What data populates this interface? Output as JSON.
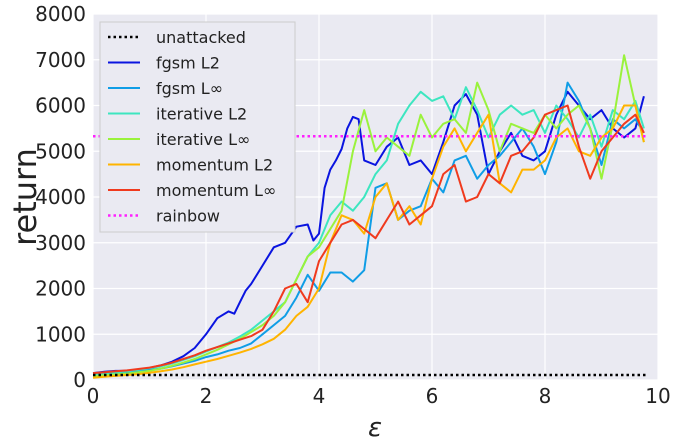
{
  "chart_data": {
    "type": "line",
    "xlabel": "ε",
    "ylabel": "return",
    "xlim": [
      0,
      10
    ],
    "ylim": [
      0,
      8000
    ],
    "xticks": [
      "0",
      "2",
      "4",
      "6",
      "8",
      "10"
    ],
    "yticks": [
      "0",
      "1000",
      "2000",
      "3000",
      "4000",
      "5000",
      "6000",
      "7000",
      "8000"
    ],
    "grid": true,
    "legend_position": "top-left",
    "series": [
      {
        "name": "unattacked",
        "color": "#000000",
        "style": "dotted",
        "x": [
          0,
          9.8
        ],
        "y": [
          110,
          110
        ]
      },
      {
        "name": "fgsm L2",
        "color": "#0a14e0",
        "style": "solid",
        "x": [
          0,
          0.2,
          0.4,
          0.6,
          0.8,
          1.0,
          1.2,
          1.4,
          1.6,
          1.8,
          2.0,
          2.2,
          2.4,
          2.5,
          2.6,
          2.7,
          2.8,
          3.0,
          3.2,
          3.4,
          3.6,
          3.8,
          3.9,
          4.0,
          4.1,
          4.2,
          4.3,
          4.4,
          4.5,
          4.6,
          4.7,
          4.8,
          5.0,
          5.2,
          5.4,
          5.6,
          5.8,
          6.0,
          6.2,
          6.4,
          6.6,
          6.8,
          7.0,
          7.2,
          7.4,
          7.6,
          7.8,
          8.0,
          8.2,
          8.4,
          8.6,
          8.8,
          9.0,
          9.2,
          9.4,
          9.6,
          9.75
        ],
        "y": [
          150,
          180,
          200,
          200,
          230,
          260,
          320,
          400,
          520,
          700,
          1000,
          1350,
          1500,
          1450,
          1700,
          1950,
          2100,
          2500,
          2900,
          3000,
          3350,
          3400,
          3050,
          3200,
          4200,
          4600,
          4800,
          5050,
          5500,
          5750,
          5700,
          4800,
          4700,
          5100,
          5300,
          4700,
          4800,
          4500,
          5200,
          6000,
          6250,
          5800,
          4500,
          5000,
          5400,
          4900,
          4800,
          5000,
          5800,
          6300,
          6000,
          5700,
          5900,
          5500,
          5300,
          5500,
          6200
        ]
      },
      {
        "name": "fgsm L∞",
        "color": "#0f9de6",
        "style": "solid",
        "x": [
          0,
          0.2,
          0.4,
          0.6,
          0.8,
          1.0,
          1.2,
          1.4,
          1.6,
          1.8,
          2.0,
          2.2,
          2.4,
          2.6,
          2.8,
          3.0,
          3.2,
          3.4,
          3.6,
          3.8,
          4.0,
          4.2,
          4.4,
          4.6,
          4.8,
          5.0,
          5.2,
          5.4,
          5.6,
          5.8,
          6.0,
          6.2,
          6.4,
          6.6,
          6.8,
          7.0,
          7.2,
          7.4,
          7.6,
          7.8,
          8.0,
          8.2,
          8.4,
          8.6,
          8.8,
          9.0,
          9.2,
          9.4,
          9.6,
          9.75
        ],
        "y": [
          100,
          120,
          150,
          170,
          200,
          220,
          250,
          300,
          360,
          420,
          500,
          560,
          640,
          700,
          800,
          1000,
          1200,
          1400,
          1800,
          2300,
          1950,
          2350,
          2350,
          2150,
          2400,
          4200,
          4300,
          3500,
          3700,
          3800,
          4400,
          4100,
          4800,
          4900,
          4400,
          4700,
          4900,
          5200,
          5500,
          5100,
          4500,
          5200,
          6500,
          6100,
          5500,
          4700,
          5700,
          5500,
          5700,
          5400
        ]
      },
      {
        "name": "iterative L2",
        "color": "#3de6c0",
        "style": "solid",
        "x": [
          0,
          0.2,
          0.4,
          0.6,
          0.8,
          1.0,
          1.2,
          1.4,
          1.6,
          1.8,
          2.0,
          2.2,
          2.4,
          2.6,
          2.8,
          3.0,
          3.2,
          3.4,
          3.6,
          3.8,
          4.0,
          4.2,
          4.4,
          4.6,
          4.8,
          5.0,
          5.2,
          5.4,
          5.6,
          5.8,
          6.0,
          6.2,
          6.4,
          6.6,
          6.8,
          7.0,
          7.2,
          7.4,
          7.6,
          7.8,
          8.0,
          8.2,
          8.4,
          8.6,
          8.8,
          9.0,
          9.2,
          9.4,
          9.6,
          9.75
        ],
        "y": [
          120,
          140,
          160,
          190,
          220,
          260,
          300,
          360,
          440,
          520,
          620,
          720,
          820,
          950,
          1100,
          1300,
          1500,
          1700,
          2200,
          2700,
          3000,
          3600,
          3900,
          3700,
          4000,
          4500,
          4800,
          5600,
          6000,
          6300,
          6100,
          6200,
          5700,
          6400,
          5900,
          5300,
          5800,
          6000,
          5800,
          5900,
          5400,
          6000,
          5700,
          5300,
          5800,
          5100,
          5900,
          5700,
          6100,
          5500
        ]
      },
      {
        "name": "iterative L∞",
        "color": "#9af23c",
        "style": "solid",
        "x": [
          0,
          0.2,
          0.4,
          0.6,
          0.8,
          1.0,
          1.2,
          1.4,
          1.6,
          1.8,
          2.0,
          2.2,
          2.4,
          2.6,
          2.8,
          3.0,
          3.2,
          3.4,
          3.6,
          3.8,
          4.0,
          4.2,
          4.4,
          4.6,
          4.8,
          5.0,
          5.2,
          5.4,
          5.6,
          5.8,
          6.0,
          6.2,
          6.4,
          6.6,
          6.8,
          7.0,
          7.2,
          7.4,
          7.6,
          7.8,
          8.0,
          8.2,
          8.4,
          8.6,
          8.8,
          9.0,
          9.2,
          9.4,
          9.6,
          9.75
        ],
        "y": [
          80,
          100,
          120,
          140,
          170,
          200,
          250,
          310,
          380,
          460,
          560,
          660,
          780,
          900,
          1050,
          1200,
          1400,
          1700,
          2200,
          2700,
          2900,
          3300,
          3700,
          5000,
          5900,
          5000,
          5300,
          5100,
          4900,
          5800,
          5300,
          5600,
          5700,
          5400,
          6500,
          5900,
          5000,
          5600,
          5500,
          5400,
          5800,
          5500,
          5800,
          6000,
          5500,
          4400,
          5600,
          7100,
          6000,
          5200
        ]
      },
      {
        "name": "momentum L2",
        "color": "#ffb400",
        "style": "solid",
        "x": [
          0,
          0.2,
          0.4,
          0.6,
          0.8,
          1.0,
          1.2,
          1.4,
          1.6,
          1.8,
          2.0,
          2.2,
          2.4,
          2.6,
          2.8,
          3.0,
          3.2,
          3.4,
          3.6,
          3.8,
          4.0,
          4.2,
          4.4,
          4.6,
          4.8,
          5.0,
          5.2,
          5.4,
          5.6,
          5.8,
          6.0,
          6.2,
          6.4,
          6.6,
          6.8,
          7.0,
          7.2,
          7.4,
          7.6,
          7.8,
          8.0,
          8.2,
          8.4,
          8.6,
          8.8,
          9.0,
          9.2,
          9.4,
          9.6,
          9.75
        ],
        "y": [
          50,
          70,
          90,
          110,
          130,
          160,
          190,
          230,
          280,
          340,
          400,
          460,
          530,
          600,
          680,
          780,
          900,
          1100,
          1400,
          1600,
          2000,
          3000,
          3600,
          3500,
          3200,
          4000,
          4300,
          3500,
          3800,
          3400,
          4400,
          5100,
          5500,
          5000,
          5400,
          5800,
          4300,
          4100,
          4600,
          4600,
          4800,
          5300,
          5500,
          5000,
          4900,
          5300,
          5500,
          6000,
          6000,
          5200
        ]
      },
      {
        "name": "momentum L∞",
        "color": "#f03a1e",
        "style": "solid",
        "x": [
          0,
          0.2,
          0.4,
          0.6,
          0.8,
          1.0,
          1.2,
          1.4,
          1.6,
          1.8,
          2.0,
          2.2,
          2.4,
          2.6,
          2.8,
          3.0,
          3.2,
          3.4,
          3.6,
          3.8,
          4.0,
          4.2,
          4.4,
          4.6,
          4.8,
          5.0,
          5.2,
          5.4,
          5.6,
          5.8,
          6.0,
          6.2,
          6.4,
          6.6,
          6.8,
          7.0,
          7.2,
          7.4,
          7.6,
          7.8,
          8.0,
          8.2,
          8.4,
          8.6,
          8.8,
          9.0,
          9.2,
          9.4,
          9.6,
          9.75
        ],
        "y": [
          150,
          170,
          190,
          210,
          240,
          270,
          320,
          380,
          460,
          540,
          640,
          720,
          800,
          880,
          960,
          1100,
          1500,
          2000,
          2100,
          1700,
          2600,
          3000,
          3400,
          3500,
          3300,
          3100,
          3500,
          3900,
          3400,
          3600,
          3800,
          4500,
          4700,
          3900,
          4000,
          4500,
          4300,
          4900,
          5000,
          5300,
          5800,
          5900,
          6000,
          5100,
          4400,
          5000,
          5300,
          5600,
          5800,
          5400
        ]
      },
      {
        "name": "rainbow",
        "color": "#ff20ff",
        "style": "dotted",
        "x": [
          0,
          9.8
        ],
        "y": [
          5330,
          5330
        ]
      }
    ]
  }
}
